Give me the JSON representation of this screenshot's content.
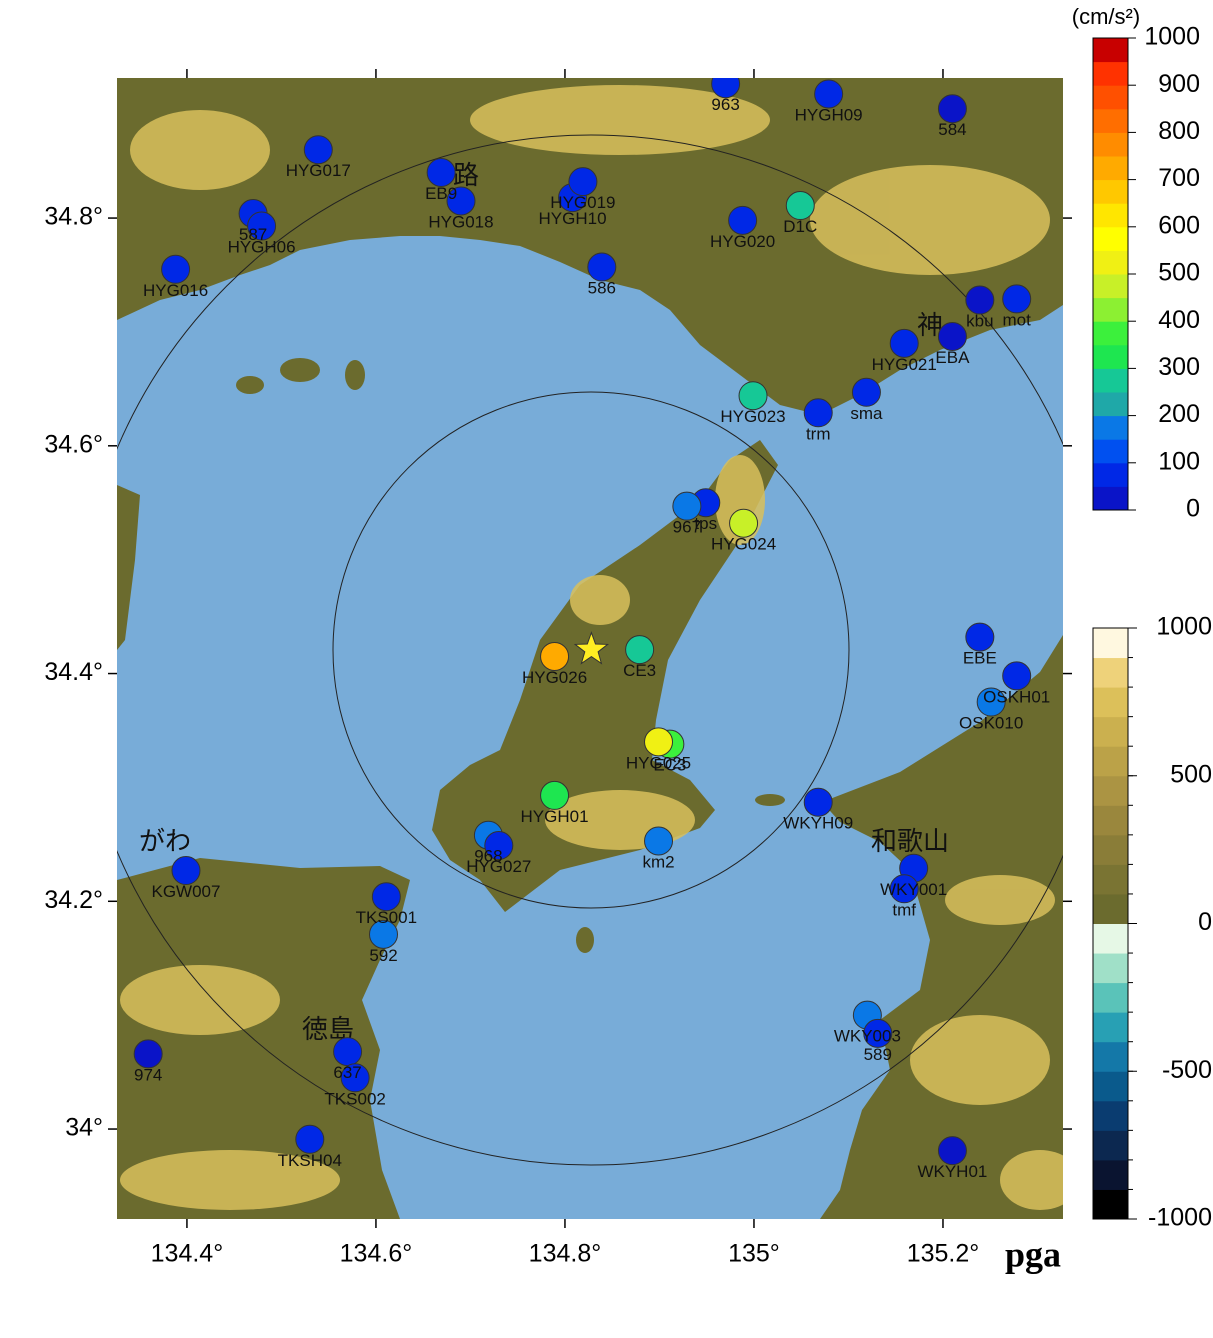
{
  "map": {
    "variable": "pga",
    "unit": "(cm/s²)",
    "lonlim": [
      134.326,
      135.327
    ],
    "latlim": [
      33.921,
      34.923
    ],
    "lonticks": [
      {
        "value": 134.4,
        "label": "134.4°"
      },
      {
        "value": 134.6,
        "label": "134.6°"
      },
      {
        "value": 134.8,
        "label": "134.8°"
      },
      {
        "value": 135,
        "label": "135°"
      },
      {
        "value": 135.2,
        "label": "135.2°"
      }
    ],
    "latticks": [
      {
        "value": 34.8,
        "label": "34.8°"
      },
      {
        "value": 34.6,
        "label": "34.6°"
      },
      {
        "value": 34.4,
        "label": "34.4°"
      },
      {
        "value": 34.2,
        "label": "34.2°"
      },
      {
        "value": 34,
        "label": "34°"
      }
    ],
    "epicenter": {
      "lon": 134.828,
      "lat": 34.421
    },
    "places": [
      "路",
      "神",
      "がわ",
      "和歌山",
      "徳島"
    ],
    "stations": [
      {
        "name": "963",
        "lon": 134.97,
        "lat": 34.918,
        "pga": 80
      },
      {
        "name": "HYGH09",
        "lon": 135.079,
        "lat": 34.909,
        "pga": 80
      },
      {
        "name": "584",
        "lon": 135.21,
        "lat": 34.896,
        "pga": 40
      },
      {
        "name": "HYG017",
        "lon": 134.539,
        "lat": 34.86,
        "pga": 80
      },
      {
        "name": "EB9",
        "lon": 134.669,
        "lat": 34.84,
        "pga": 70
      },
      {
        "name": "HYG018",
        "lon": 134.69,
        "lat": 34.815,
        "pga": 60
      },
      {
        "name": "HYGH10",
        "lon": 134.808,
        "lat": 34.818,
        "pga": 60
      },
      {
        "name": "HYG019",
        "lon": 134.819,
        "lat": 34.832,
        "pga": 80
      },
      {
        "name": "587",
        "lon": 134.47,
        "lat": 34.804,
        "pga": 80
      },
      {
        "name": "HYGH06",
        "lon": 134.479,
        "lat": 34.793,
        "pga": 90
      },
      {
        "name": "HYG016",
        "lon": 134.388,
        "lat": 34.755,
        "pga": 70
      },
      {
        "name": "HYG020",
        "lon": 134.988,
        "lat": 34.798,
        "pga": 70
      },
      {
        "name": "D1C",
        "lon": 135.049,
        "lat": 34.811,
        "pga": 250
      },
      {
        "name": "586",
        "lon": 134.839,
        "lat": 34.757,
        "pga": 80
      },
      {
        "name": "kbu",
        "lon": 135.239,
        "lat": 34.728,
        "pga": 40
      },
      {
        "name": "mot",
        "lon": 135.278,
        "lat": 34.729,
        "pga": 80
      },
      {
        "name": "HYG021",
        "lon": 135.159,
        "lat": 34.69,
        "pga": 70
      },
      {
        "name": "EBA",
        "lon": 135.21,
        "lat": 34.696,
        "pga": 40
      },
      {
        "name": "HYG023",
        "lon": 134.999,
        "lat": 34.644,
        "pga": 280
      },
      {
        "name": "trm",
        "lon": 135.068,
        "lat": 34.629,
        "pga": 80
      },
      {
        "name": "sma",
        "lon": 135.119,
        "lat": 34.647,
        "pga": 90
      },
      {
        "name": "tps",
        "lon": 134.949,
        "lat": 34.55,
        "pga": 90
      },
      {
        "name": "967",
        "lon": 134.929,
        "lat": 34.547,
        "pga": 170
      },
      {
        "name": "HYG024",
        "lon": 134.989,
        "lat": 34.532,
        "pga": 450
      },
      {
        "name": "HYG026",
        "lon": 134.789,
        "lat": 34.415,
        "pga": 730
      },
      {
        "name": "CE3",
        "lon": 134.879,
        "lat": 34.421,
        "pga": 260
      },
      {
        "name": "EC3",
        "lon": 134.911,
        "lat": 34.338,
        "pga": 380
      },
      {
        "name": "HYG025",
        "lon": 134.899,
        "lat": 34.34,
        "pga": 540
      },
      {
        "name": "HYGH01",
        "lon": 134.789,
        "lat": 34.293,
        "pga": 310
      },
      {
        "name": "968",
        "lon": 134.719,
        "lat": 34.258,
        "pga": 170
      },
      {
        "name": "HYG027",
        "lon": 134.73,
        "lat": 34.249,
        "pga": 90
      },
      {
        "name": "km2",
        "lon": 134.899,
        "lat": 34.253,
        "pga": 170
      },
      {
        "name": "EBE",
        "lon": 135.239,
        "lat": 34.432,
        "pga": 70
      },
      {
        "name": "OSKH01",
        "lon": 135.278,
        "lat": 34.398,
        "pga": 80
      },
      {
        "name": "OSK010",
        "lon": 135.251,
        "lat": 34.375,
        "pga": 170
      },
      {
        "name": "WKYH09",
        "lon": 135.068,
        "lat": 34.287,
        "pga": 90
      },
      {
        "name": "WKY001",
        "lon": 135.169,
        "lat": 34.229,
        "pga": 90
      },
      {
        "name": "tmf",
        "lon": 135.159,
        "lat": 34.211,
        "pga": 70
      },
      {
        "name": "KGW007",
        "lon": 134.399,
        "lat": 34.227,
        "pga": 80
      },
      {
        "name": "TKS001",
        "lon": 134.611,
        "lat": 34.204,
        "pga": 80
      },
      {
        "name": "592",
        "lon": 134.608,
        "lat": 34.171,
        "pga": 170
      },
      {
        "name": "974",
        "lon": 134.359,
        "lat": 34.066,
        "pga": 40
      },
      {
        "name": "637",
        "lon": 134.57,
        "lat": 34.068,
        "pga": 80
      },
      {
        "name": "TKS002",
        "lon": 134.578,
        "lat": 34.045,
        "pga": 60
      },
      {
        "name": "TKSH04",
        "lon": 134.53,
        "lat": 33.991,
        "pga": 70
      },
      {
        "name": "WKY003",
        "lon": 135.12,
        "lat": 34.1,
        "pga": 170
      },
      {
        "name": "589",
        "lon": 135.131,
        "lat": 34.084,
        "pga": 50
      },
      {
        "name": "WKYH01",
        "lon": 135.21,
        "lat": 33.981,
        "pga": 40
      }
    ],
    "pga_colorbar": {
      "range": [
        0,
        1000
      ],
      "ticks": [
        0,
        100,
        200,
        300,
        400,
        500,
        600,
        700,
        800,
        900,
        1000
      ],
      "colors": [
        "#0a14c8",
        "#0028e6",
        "#0050f0",
        "#0a78e6",
        "#1fa8a8",
        "#16c896",
        "#1ee650",
        "#3cf03c",
        "#8cf032",
        "#c8f028",
        "#f0f014",
        "#ffff00",
        "#ffe600",
        "#ffc800",
        "#ffaa00",
        "#ff8c00",
        "#ff6e00",
        "#ff5000",
        "#ff3200",
        "#c80000"
      ]
    },
    "elevation_colorbar": {
      "range": [
        -1000,
        1000
      ],
      "ticks": [
        1000,
        500,
        0,
        -500,
        -1000
      ],
      "colors": [
        "#000000",
        "#0a1430",
        "#0c2850",
        "#0a3c70",
        "#0a5a8c",
        "#1478a8",
        "#28a0b4",
        "#5ac3b9",
        "#a0e0c8",
        "#e6f8e6",
        "#6b6b2e",
        "#7a7433",
        "#8a7d38",
        "#9a873d",
        "#ab9443",
        "#bba248",
        "#cbb04f",
        "#dcc05a",
        "#eed27a",
        "#fff8e0"
      ]
    }
  }
}
